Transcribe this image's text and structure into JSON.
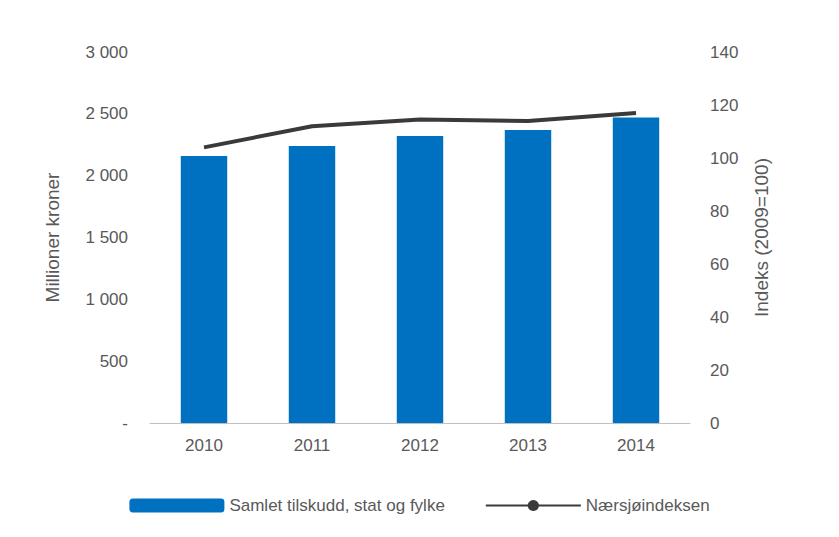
{
  "chart_data": {
    "type": "bar",
    "categories": [
      "2010",
      "2011",
      "2012",
      "2013",
      "2014"
    ],
    "series": [
      {
        "name": "Samlet tilskudd, stat og fylke",
        "type": "bar",
        "color": "#0070c0",
        "values": [
          2160,
          2240,
          2320,
          2370,
          2470
        ]
      },
      {
        "name": "Nærsjøindeksen",
        "type": "line",
        "axis": "y2",
        "color": "#3a3a3a",
        "line_style": "solid",
        "marker": "none",
        "values": [
          104,
          112,
          114.5,
          114,
          117
        ]
      }
    ],
    "ylabel": "Millioner kroner",
    "y2label": "Indeks (2009=100)",
    "ylim": [
      0,
      3000
    ],
    "yticks": [
      {
        "value": 0,
        "label": "-"
      },
      500,
      {
        "value": 1000,
        "label": "1 000"
      },
      {
        "value": 1500,
        "label": "1 500"
      },
      {
        "value": 2000,
        "label": "2 000"
      },
      {
        "value": 2500,
        "label": "2 500"
      },
      {
        "value": 3000,
        "label": "3 000"
      }
    ],
    "y2lim": [
      0,
      140
    ],
    "y2ticks": [
      0,
      20,
      40,
      60,
      80,
      100,
      120,
      140
    ],
    "grid": false,
    "legend": "bottom"
  }
}
